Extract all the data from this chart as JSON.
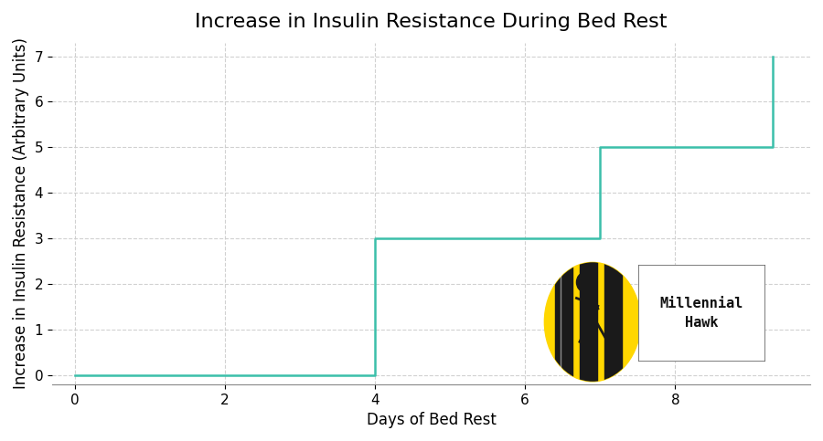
{
  "title": "Increase in Insulin Resistance During Bed Rest",
  "xlabel": "Days of Bed Rest",
  "ylabel": "Increase in Insulin Resistance (Arbitrary Units)",
  "x_full": [
    0,
    4,
    4,
    7,
    7,
    9.3,
    9.3
  ],
  "y_full": [
    0,
    0,
    3,
    3,
    5,
    5,
    7
  ],
  "line_color": "#3bbfaa",
  "line_width": 1.8,
  "xlim": [
    -0.3,
    9.8
  ],
  "ylim": [
    -0.2,
    7.3
  ],
  "xticks": [
    0,
    2,
    4,
    6,
    8
  ],
  "yticks": [
    0,
    1,
    2,
    3,
    4,
    5,
    6,
    7
  ],
  "grid_color": "#cccccc",
  "grid_style": "--",
  "bg_color": "#ffffff",
  "title_fontsize": 16,
  "label_fontsize": 12,
  "tick_fontsize": 11,
  "watermark_text": "Millennial\nHawk"
}
